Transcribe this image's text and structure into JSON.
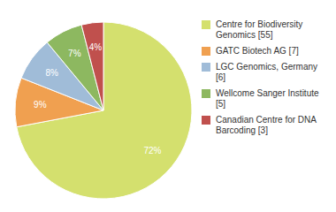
{
  "chart_data": {
    "type": "pie",
    "categories": [
      "Centre for Biodiversity\nGenomics [55]",
      "GATC Biotech AG [7]",
      "LGC Genomics, Germany [6]",
      "Wellcome Sanger Institute [5]",
      "Canadian Centre for DNA\nBarcoding [3]"
    ],
    "values": [
      72,
      9,
      8,
      7,
      4
    ],
    "value_labels": [
      "72%",
      "9%",
      "8%",
      "7%",
      "4%"
    ],
    "colors": [
      "#d4e06e",
      "#f0a050",
      "#a0bcd8",
      "#8db860",
      "#c0504d"
    ],
    "data_labels": true,
    "legend": "right"
  }
}
